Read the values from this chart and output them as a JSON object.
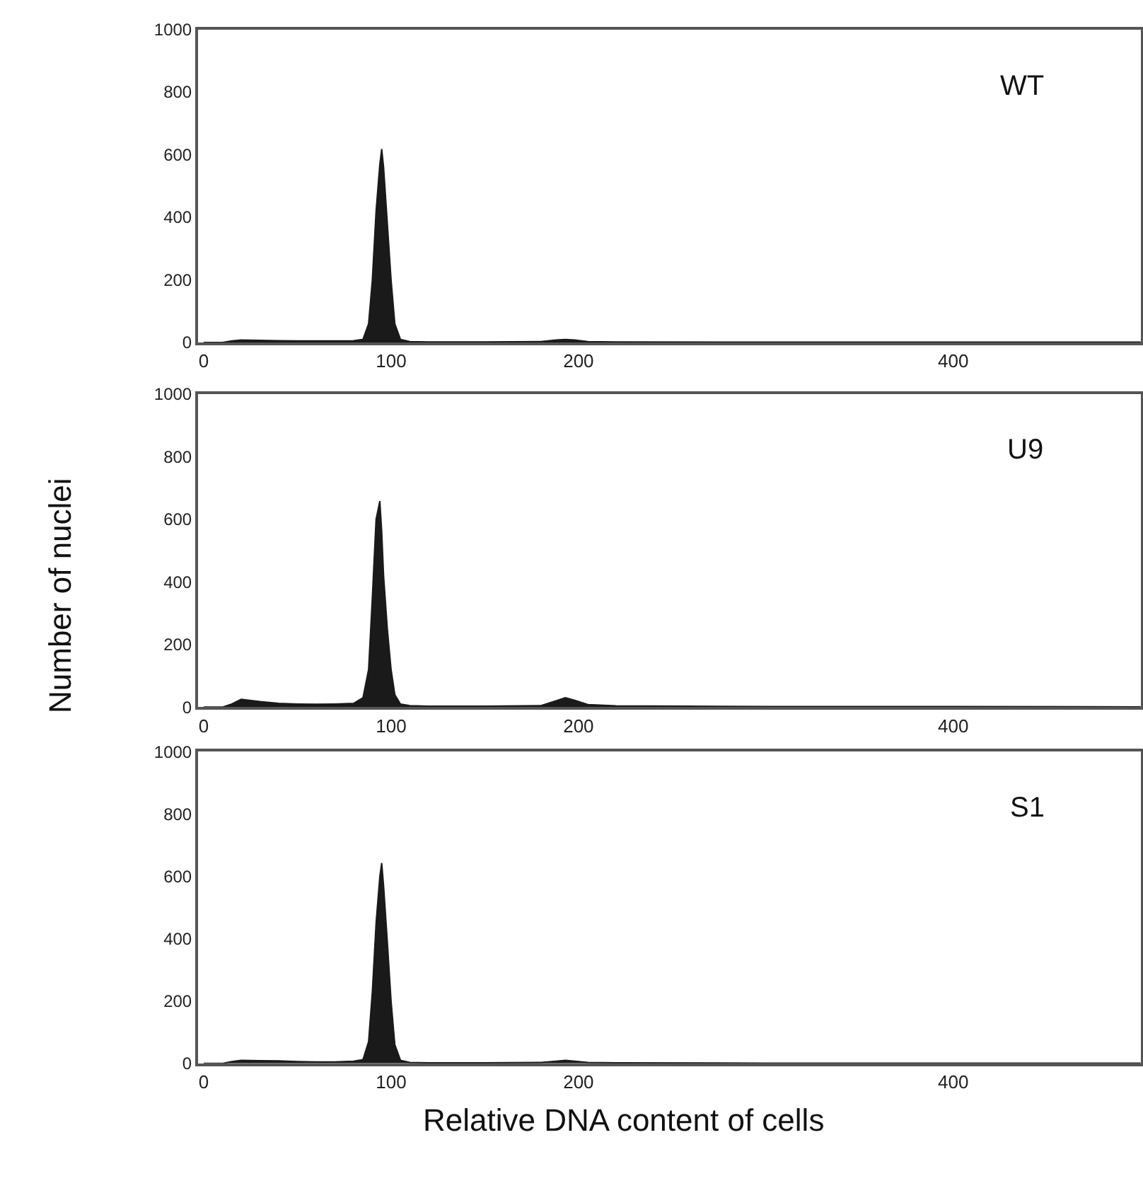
{
  "chart_data": [
    {
      "type": "area",
      "x": [
        0,
        10,
        15,
        20,
        30,
        40,
        50,
        60,
        70,
        80,
        85,
        88,
        90,
        92,
        94,
        95,
        96,
        98,
        100,
        102,
        105,
        110,
        120,
        150,
        180,
        188,
        193,
        198,
        205,
        220,
        300,
        400,
        500
      ],
      "xlim": [
        -3,
        500
      ],
      "xticks": [
        0,
        100,
        200,
        400
      ],
      "ylim": [
        0,
        1000
      ],
      "yticks": [
        0,
        200,
        400,
        600,
        800,
        1000
      ],
      "legend": false,
      "series": [
        {
          "name": "WT",
          "color": "#1a1a1a",
          "values": [
            0,
            0,
            5,
            8,
            7,
            6,
            5,
            5,
            5,
            6,
            10,
            60,
            200,
            420,
            570,
            618,
            560,
            380,
            200,
            60,
            10,
            3,
            2,
            2,
            3,
            8,
            10,
            8,
            3,
            2,
            1,
            1,
            1
          ]
        }
      ]
    },
    {
      "type": "area",
      "x": [
        0,
        10,
        15,
        20,
        30,
        40,
        50,
        60,
        70,
        80,
        85,
        88,
        90,
        92,
        94,
        95,
        96,
        98,
        100,
        102,
        105,
        110,
        120,
        150,
        180,
        188,
        193,
        198,
        205,
        220,
        300,
        400,
        500
      ],
      "xlim": [
        -3,
        500
      ],
      "xticks": [
        0,
        100,
        200,
        400
      ],
      "ylim": [
        0,
        1000
      ],
      "yticks": [
        0,
        200,
        400,
        600,
        800,
        1000
      ],
      "legend": false,
      "ylabel": "Number of nuclei",
      "series": [
        {
          "name": "U9",
          "color": "#1a1a1a",
          "values": [
            0,
            0,
            10,
            25,
            18,
            12,
            10,
            9,
            10,
            12,
            30,
            120,
            350,
            600,
            658,
            560,
            420,
            250,
            120,
            40,
            10,
            5,
            3,
            3,
            5,
            20,
            30,
            22,
            8,
            4,
            2,
            2,
            1
          ]
        }
      ]
    },
    {
      "type": "area",
      "x": [
        0,
        10,
        15,
        20,
        30,
        40,
        50,
        60,
        70,
        80,
        85,
        88,
        90,
        92,
        94,
        95,
        96,
        98,
        100,
        102,
        105,
        110,
        120,
        150,
        180,
        188,
        193,
        198,
        205,
        220,
        300,
        400,
        500
      ],
      "xlim": [
        -3,
        500
      ],
      "xticks": [
        0,
        100,
        200,
        400
      ],
      "ylim": [
        0,
        1000
      ],
      "yticks": [
        0,
        200,
        400,
        600,
        800,
        1000
      ],
      "legend": false,
      "xlabel": "Relative DNA content of cells",
      "series": [
        {
          "name": "S1",
          "color": "#1a1a1a",
          "values": [
            0,
            0,
            6,
            10,
            9,
            8,
            6,
            5,
            5,
            7,
            12,
            70,
            230,
            450,
            600,
            643,
            570,
            390,
            200,
            60,
            10,
            3,
            2,
            2,
            3,
            7,
            10,
            7,
            3,
            2,
            1,
            1,
            1
          ]
        }
      ]
    }
  ]
}
